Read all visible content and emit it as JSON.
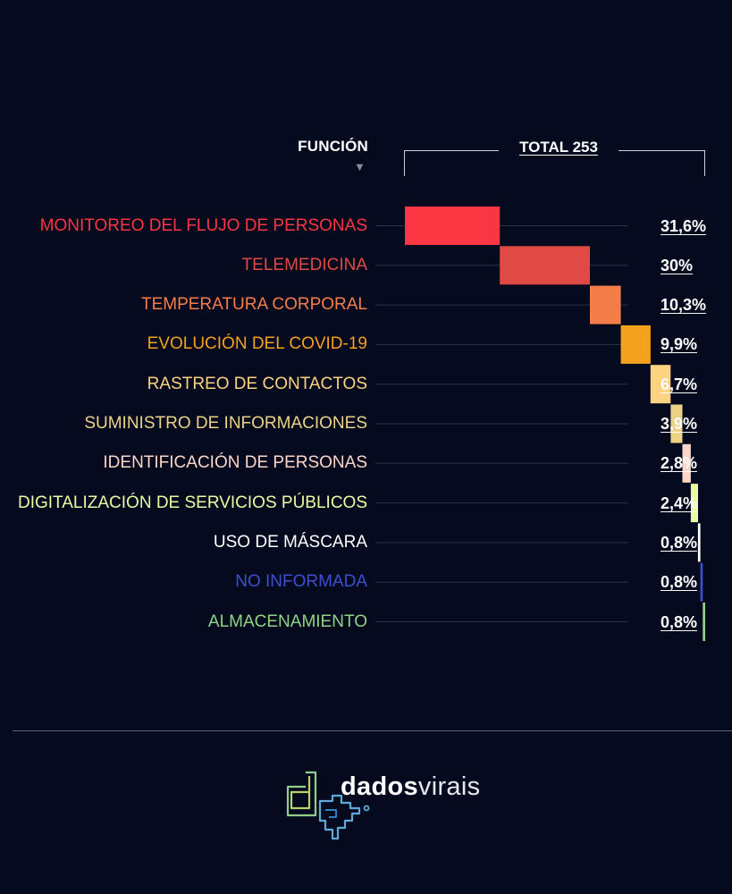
{
  "header": {
    "funcion_label": "FUNCIÓN",
    "total_label": "TOTAL 253"
  },
  "chart_data": {
    "type": "bar",
    "layout": "waterfall",
    "total": 253,
    "categories": [
      "MONITOREO DEL FLUJO DE PERSONAS",
      "TELEMEDICINA",
      "TEMPERATURA CORPORAL",
      "EVOLUCIÓN DEL COVID-19",
      "RASTREO DE CONTACTOS",
      "SUMINISTRO DE INFORMACIONES",
      "IDENTIFICACIÓN DE PERSONAS",
      "DIGITALIZACIÓN DE SERVICIOS PÚBLICOS",
      "USO DE MÁSCARA",
      "NO INFORMADA",
      "ALMACENAMIENTO"
    ],
    "values": [
      31.6,
      30,
      10.3,
      9.9,
      6.7,
      3.9,
      2.8,
      2.4,
      0.8,
      0.8,
      0.8
    ],
    "value_labels": [
      "31,6%",
      "30%",
      "10,3%",
      "9,9%",
      "6,7%",
      "3,9%",
      "2,8%",
      "2,4%",
      "0,8%",
      "0,8%",
      "0,8%"
    ],
    "colors": [
      "#f93641",
      "#e04a44",
      "#f47d4a",
      "#f4a11e",
      "#fdd37f",
      "#ecd287",
      "#fbd5c7",
      "#eafca2",
      "#ffffff",
      "#3d4fd0",
      "#8fd383"
    ],
    "unit": "%",
    "grid": "horizontal guide lines"
  },
  "footer": {
    "logo_bold": "dados",
    "logo_light": "virais"
  },
  "colors": {
    "background": "#050a1f",
    "text": "#ffffff",
    "bracket": "#cfd2da",
    "guide_line": "#2b3148"
  }
}
